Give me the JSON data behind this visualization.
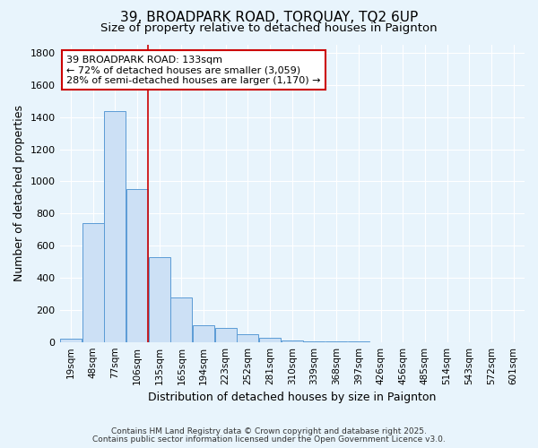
{
  "title_line1": "39, BROADPARK ROAD, TORQUAY, TQ2 6UP",
  "title_line2": "Size of property relative to detached houses in Paignton",
  "xlabel": "Distribution of detached houses by size in Paignton",
  "ylabel": "Number of detached properties",
  "bar_labels": [
    "19sqm",
    "48sqm",
    "77sqm",
    "106sqm",
    "135sqm",
    "165sqm",
    "194sqm",
    "223sqm",
    "252sqm",
    "281sqm",
    "310sqm",
    "339sqm",
    "368sqm",
    "397sqm",
    "426sqm",
    "456sqm",
    "485sqm",
    "514sqm",
    "543sqm",
    "572sqm",
    "601sqm"
  ],
  "bar_values": [
    20,
    740,
    1440,
    950,
    530,
    275,
    105,
    90,
    50,
    25,
    10,
    5,
    3,
    2,
    0,
    0,
    0,
    0,
    0,
    0,
    0
  ],
  "bar_color": "#cce0f5",
  "bar_edge_color": "#5b9bd5",
  "vline_x": 4.0,
  "vline_color": "#cc0000",
  "annotation_title": "39 BROADPARK ROAD: 133sqm",
  "annotation_line1": "← 72% of detached houses are smaller (3,059)",
  "annotation_line2": "28% of semi-detached houses are larger (1,170) →",
  "annotation_box_color": "#ffffff",
  "annotation_box_edge": "#cc0000",
  "ylim": [
    0,
    1850
  ],
  "yticks": [
    0,
    200,
    400,
    600,
    800,
    1000,
    1200,
    1400,
    1600,
    1800
  ],
  "footer_line1": "Contains HM Land Registry data © Crown copyright and database right 2025.",
  "footer_line2": "Contains public sector information licensed under the Open Government Licence v3.0.",
  "bg_color": "#e8f4fc",
  "grid_color": "#ffffff",
  "fig_width": 6.0,
  "fig_height": 5.0,
  "dpi": 100
}
